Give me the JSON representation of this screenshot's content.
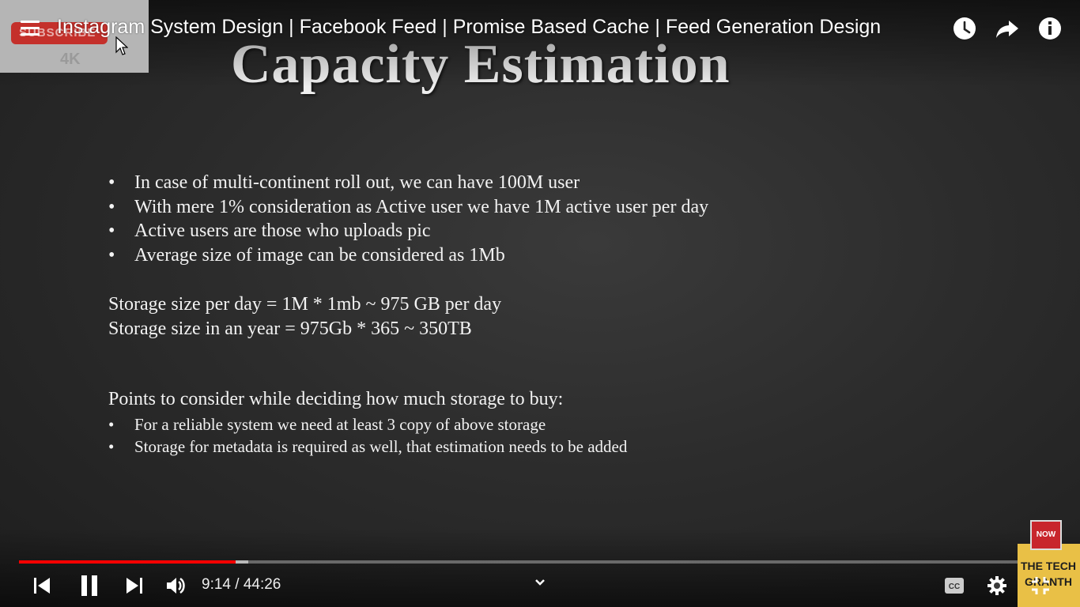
{
  "video": {
    "title": "Instagram System Design | Facebook Feed | Promise Based Cache | Feed Generation Design",
    "current_time": "9:14",
    "duration": "44:26",
    "time_display": "9:14 / 44:26",
    "progress_played": 0.208,
    "progress_buffered": 0.22
  },
  "thumbnail": {
    "subscribe_text": "SUBSCRIBE",
    "resolution_text": "4K"
  },
  "slide": {
    "title": "Capacity Estimation",
    "bullets": [
      "In case of multi-continent roll out, we can have 100M user",
      "With mere 1% consideration as Active user we have 1M active user per day",
      "Active users are those who uploads pic",
      "Average size of image can be considered as 1Mb"
    ],
    "storage_lines": [
      "Storage size per day = 1M * 1mb ~ 975 GB per day",
      "Storage size in an year = 975Gb * 365 ~ 350TB"
    ],
    "points_heading": "Points to consider while deciding how much storage to buy:",
    "points": [
      "For a reliable system we need at least 3 copy of above storage",
      "Storage for metadata is required as well, that estimation needs to be added"
    ]
  },
  "channel": {
    "name": "THE TECH GRANTH",
    "badge_text": "NOW"
  },
  "icons": {
    "menu": "menu-icon",
    "watch_later": "clock-icon",
    "share": "share-icon",
    "info": "info-icon",
    "prev": "skip-previous-icon",
    "pause": "pause-icon",
    "next": "skip-next-icon",
    "volume": "volume-icon",
    "captions": "cc-icon",
    "settings": "gear-icon",
    "exit_fullscreen": "exit-fullscreen-icon",
    "chevron": "chevron-down-icon"
  },
  "colors": {
    "progress_red": "#ff0000",
    "channel_yellow": "#e9c046"
  }
}
